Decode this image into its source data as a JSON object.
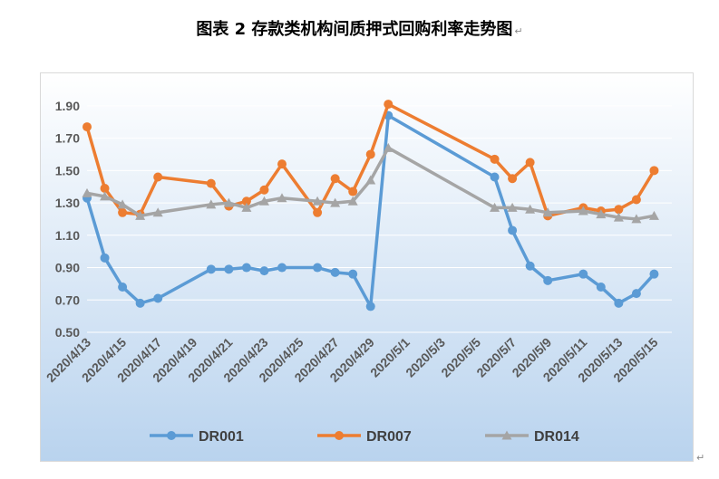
{
  "page": {
    "title": "图表 2  存款类机构间质押式回购利率走势图",
    "paragraph_mark": "↵"
  },
  "colors": {
    "background_top": "#ffffff",
    "background_bottom": "#b9d3ee",
    "grid": "#ffffff"
  },
  "chart_data": {
    "type": "line",
    "title": "",
    "xlabel": "",
    "ylabel": "",
    "ylim": [
      0.5,
      2.0
    ],
    "yticks": [
      "0.50",
      "0.70",
      "0.90",
      "1.10",
      "1.30",
      "1.50",
      "1.70",
      "1.90"
    ],
    "x_start": "2020/4/13",
    "x_end": "2020/5/16",
    "xtick_labels": [
      "2020/4/13",
      "2020/4/15",
      "2020/4/17",
      "2020/4/19",
      "2020/4/21",
      "2020/4/23",
      "2020/4/25",
      "2020/4/27",
      "2020/4/29",
      "2020/5/1",
      "2020/5/3",
      "2020/5/5",
      "2020/5/7",
      "2020/5/9",
      "2020/5/11",
      "2020/5/13",
      "2020/5/15"
    ],
    "legend_position": "bottom",
    "series": [
      {
        "name": "DR001",
        "color": "#5b9bd5",
        "marker": "circle",
        "points": [
          [
            "2020/4/13",
            1.33
          ],
          [
            "2020/4/14",
            0.96
          ],
          [
            "2020/4/15",
            0.78
          ],
          [
            "2020/4/16",
            0.68
          ],
          [
            "2020/4/17",
            0.71
          ],
          [
            "2020/4/20",
            0.89
          ],
          [
            "2020/4/21",
            0.89
          ],
          [
            "2020/4/22",
            0.9
          ],
          [
            "2020/4/23",
            0.88
          ],
          [
            "2020/4/24",
            0.9
          ],
          [
            "2020/4/26",
            0.9
          ],
          [
            "2020/4/27",
            0.87
          ],
          [
            "2020/4/28",
            0.86
          ],
          [
            "2020/4/29",
            0.66
          ],
          [
            "2020/4/30",
            1.84
          ],
          [
            "2020/5/6",
            1.46
          ],
          [
            "2020/5/7",
            1.13
          ],
          [
            "2020/5/8",
            0.91
          ],
          [
            "2020/5/9",
            0.82
          ],
          [
            "2020/5/11",
            0.86
          ],
          [
            "2020/5/12",
            0.78
          ],
          [
            "2020/5/13",
            0.68
          ],
          [
            "2020/5/14",
            0.74
          ],
          [
            "2020/5/15",
            0.86
          ]
        ]
      },
      {
        "name": "DR007",
        "color": "#ed7d31",
        "marker": "circle",
        "points": [
          [
            "2020/4/13",
            1.77
          ],
          [
            "2020/4/14",
            1.39
          ],
          [
            "2020/4/15",
            1.24
          ],
          [
            "2020/4/16",
            1.23
          ],
          [
            "2020/4/17",
            1.46
          ],
          [
            "2020/4/20",
            1.42
          ],
          [
            "2020/4/21",
            1.28
          ],
          [
            "2020/4/22",
            1.31
          ],
          [
            "2020/4/23",
            1.38
          ],
          [
            "2020/4/24",
            1.54
          ],
          [
            "2020/4/26",
            1.24
          ],
          [
            "2020/4/27",
            1.45
          ],
          [
            "2020/4/28",
            1.37
          ],
          [
            "2020/4/29",
            1.6
          ],
          [
            "2020/4/30",
            1.91
          ],
          [
            "2020/5/6",
            1.57
          ],
          [
            "2020/5/7",
            1.45
          ],
          [
            "2020/5/8",
            1.55
          ],
          [
            "2020/5/9",
            1.22
          ],
          [
            "2020/5/11",
            1.27
          ],
          [
            "2020/5/12",
            1.25
          ],
          [
            "2020/5/13",
            1.26
          ],
          [
            "2020/5/14",
            1.32
          ],
          [
            "2020/5/15",
            1.5
          ]
        ]
      },
      {
        "name": "DR014",
        "color": "#a5a5a5",
        "marker": "triangle",
        "points": [
          [
            "2020/4/13",
            1.36
          ],
          [
            "2020/4/14",
            1.34
          ],
          [
            "2020/4/15",
            1.29
          ],
          [
            "2020/4/16",
            1.22
          ],
          [
            "2020/4/17",
            1.24
          ],
          [
            "2020/4/20",
            1.29
          ],
          [
            "2020/4/21",
            1.3
          ],
          [
            "2020/4/22",
            1.27
          ],
          [
            "2020/4/23",
            1.31
          ],
          [
            "2020/4/24",
            1.33
          ],
          [
            "2020/4/26",
            1.31
          ],
          [
            "2020/4/27",
            1.3
          ],
          [
            "2020/4/28",
            1.31
          ],
          [
            "2020/4/29",
            1.44
          ],
          [
            "2020/4/30",
            1.64
          ],
          [
            "2020/5/6",
            1.27
          ],
          [
            "2020/5/7",
            1.27
          ],
          [
            "2020/5/8",
            1.26
          ],
          [
            "2020/5/9",
            1.24
          ],
          [
            "2020/5/11",
            1.25
          ],
          [
            "2020/5/12",
            1.23
          ],
          [
            "2020/5/13",
            1.21
          ],
          [
            "2020/5/14",
            1.2
          ],
          [
            "2020/5/15",
            1.22
          ]
        ]
      }
    ]
  }
}
